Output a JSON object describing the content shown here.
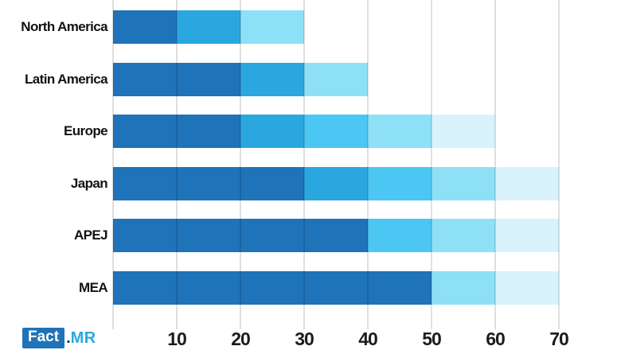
{
  "logo": {
    "fact": "Fact",
    "dot": ".",
    "mr": "MR"
  },
  "colors": {
    "dark": "#1F73B8",
    "medium": "#2AA7DF",
    "bright": "#4CC6F3",
    "light": "#8EE0F7",
    "very_light": "#D9F3FC",
    "grid": "#D8DCDC",
    "tick_text": "#1C1C1C",
    "logo_box": "#1F73B8",
    "logo_mr": "#29A9E0"
  },
  "chart_data": {
    "type": "bar",
    "orientation": "horizontal",
    "stacked": true,
    "title": "",
    "xlabel": "",
    "ylabel": "",
    "xlim": [
      0,
      70
    ],
    "x_gridlines": [
      0,
      10,
      20,
      30,
      40,
      50,
      60,
      70
    ],
    "x_ticks": [
      10,
      20,
      30,
      40,
      50,
      60,
      70
    ],
    "grid": "vertical",
    "legend": "none",
    "categories": [
      "North America",
      "Latin America",
      "Europe",
      "Japan",
      "APEJ",
      "MEA"
    ],
    "bar_totals": [
      30,
      40,
      60,
      70,
      70,
      70
    ],
    "bars": [
      {
        "label": "North America",
        "segments": [
          {
            "value": 10,
            "color_key": "dark"
          },
          {
            "value": 10,
            "color_key": "medium"
          },
          {
            "value": 10,
            "color_key": "light"
          }
        ]
      },
      {
        "label": "Latin America",
        "segments": [
          {
            "value": 20,
            "color_key": "dark"
          },
          {
            "value": 10,
            "color_key": "medium"
          },
          {
            "value": 10,
            "color_key": "light"
          }
        ]
      },
      {
        "label": "Europe",
        "segments": [
          {
            "value": 20,
            "color_key": "dark"
          },
          {
            "value": 10,
            "color_key": "medium"
          },
          {
            "value": 10,
            "color_key": "bright"
          },
          {
            "value": 10,
            "color_key": "light"
          },
          {
            "value": 10,
            "color_key": "very_light"
          }
        ]
      },
      {
        "label": "Japan",
        "segments": [
          {
            "value": 30,
            "color_key": "dark"
          },
          {
            "value": 10,
            "color_key": "medium"
          },
          {
            "value": 10,
            "color_key": "bright"
          },
          {
            "value": 10,
            "color_key": "light"
          },
          {
            "value": 10,
            "color_key": "very_light"
          }
        ]
      },
      {
        "label": "APEJ",
        "segments": [
          {
            "value": 40,
            "color_key": "dark"
          },
          {
            "value": 10,
            "color_key": "bright"
          },
          {
            "value": 10,
            "color_key": "light"
          },
          {
            "value": 10,
            "color_key": "very_light"
          }
        ]
      },
      {
        "label": "MEA",
        "segments": [
          {
            "value": 50,
            "color_key": "dark"
          },
          {
            "value": 10,
            "color_key": "light"
          },
          {
            "value": 10,
            "color_key": "very_light"
          }
        ]
      }
    ]
  }
}
